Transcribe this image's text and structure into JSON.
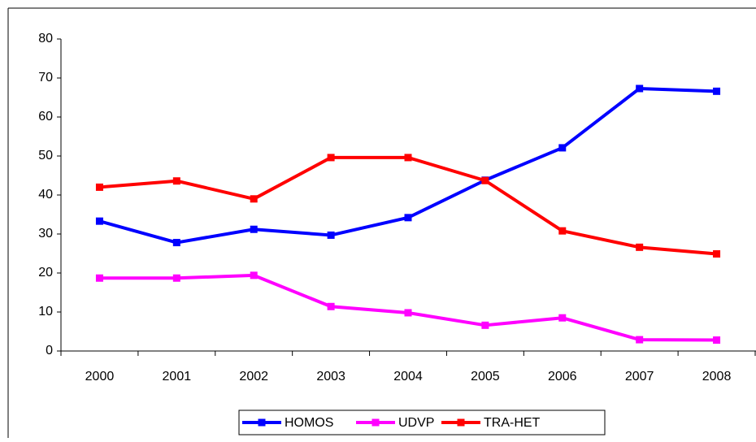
{
  "chart_data": {
    "type": "line",
    "categories": [
      "2000",
      "2001",
      "2002",
      "2003",
      "2004",
      "2005",
      "2006",
      "2007",
      "2008"
    ],
    "series": [
      {
        "name": "HOMOS",
        "color": "#0000ff",
        "values": [
          33.3,
          27.8,
          31.2,
          29.7,
          34.2,
          43.8,
          52.1,
          67.3,
          66.6
        ]
      },
      {
        "name": "UDVP",
        "color": "#ff00ff",
        "values": [
          18.7,
          18.7,
          19.4,
          11.4,
          9.8,
          6.6,
          8.5,
          2.9,
          2.8
        ]
      },
      {
        "name": "TRA-HET",
        "color": "#ff0000",
        "values": [
          42.0,
          43.6,
          39.0,
          49.6,
          49.6,
          43.7,
          30.8,
          26.6,
          24.9
        ]
      }
    ],
    "ylim": [
      0,
      80
    ],
    "yticks": [
      0,
      10,
      20,
      30,
      40,
      50,
      60,
      70,
      80
    ],
    "legend": "bottom"
  }
}
